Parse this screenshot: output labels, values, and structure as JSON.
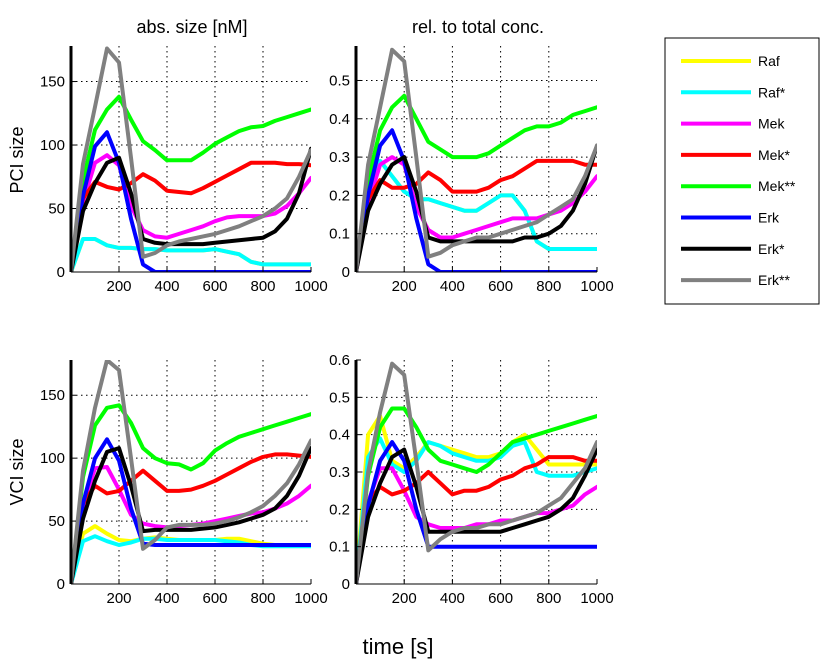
{
  "figure": {
    "column_titles": [
      "abs. size [nM]",
      "rel. to total conc."
    ],
    "row_labels": [
      "PCI size",
      "VCI size"
    ],
    "xlabel": "time [s]"
  },
  "legend": {
    "placement": "right",
    "entries": [
      {
        "name": "Raf",
        "color": "#ffff00"
      },
      {
        "name": "Raf*",
        "color": "#00ffff"
      },
      {
        "name": "Mek",
        "color": "#ff00ff"
      },
      {
        "name": "Mek*",
        "color": "#ff0000"
      },
      {
        "name": "Mek**",
        "color": "#00ff00"
      },
      {
        "name": "Erk",
        "color": "#0000ff"
      },
      {
        "name": "Erk*",
        "color": "#000000"
      },
      {
        "name": "Erk**",
        "color": "#808080"
      }
    ]
  },
  "chart_data": [
    {
      "type": "line",
      "row": 0,
      "col": 0,
      "title": "abs. size [nM]",
      "ylabel": "PCI size",
      "xlim": [
        0,
        1000
      ],
      "ylim": [
        0,
        178
      ],
      "xticks": [
        200,
        400,
        600,
        800,
        1000
      ],
      "yticks": [
        0,
        50,
        100,
        150
      ],
      "grid": true,
      "x": [
        0,
        50,
        100,
        150,
        200,
        250,
        300,
        350,
        400,
        450,
        500,
        550,
        600,
        650,
        700,
        750,
        800,
        850,
        900,
        950,
        1000
      ],
      "series": [
        {
          "name": "Raf",
          "color": "#ffff00",
          "values": [
            0,
            26,
            26,
            21,
            19,
            19,
            18,
            18,
            17,
            17,
            17,
            17,
            18,
            16,
            14,
            8,
            6,
            6,
            6,
            6,
            6
          ]
        },
        {
          "name": "Raf*",
          "color": "#00ffff",
          "values": [
            0,
            26,
            26,
            21,
            19,
            19,
            18,
            18,
            17,
            17,
            17,
            17,
            18,
            16,
            14,
            8,
            6,
            6,
            6,
            6,
            6
          ]
        },
        {
          "name": "Mek",
          "color": "#ff00ff",
          "values": [
            0,
            55,
            86,
            92,
            84,
            52,
            33,
            28,
            27,
            30,
            33,
            36,
            40,
            43,
            44,
            44,
            44,
            46,
            52,
            62,
            74
          ]
        },
        {
          "name": "Mek*",
          "color": "#ff0000",
          "values": [
            0,
            58,
            71,
            67,
            65,
            70,
            77,
            72,
            64,
            63,
            62,
            66,
            71,
            76,
            81,
            86,
            86,
            86,
            85,
            85,
            84
          ]
        },
        {
          "name": "Mek**",
          "color": "#00ff00",
          "values": [
            0,
            72,
            112,
            128,
            138,
            120,
            103,
            96,
            88,
            88,
            88,
            94,
            101,
            106,
            111,
            114,
            115,
            119,
            122,
            125,
            128
          ]
        },
        {
          "name": "Erk",
          "color": "#0000ff",
          "values": [
            0,
            60,
            99,
            110,
            86,
            42,
            6,
            0,
            0,
            0,
            0,
            0,
            0,
            0,
            0,
            0,
            0,
            0,
            0,
            0,
            0
          ]
        },
        {
          "name": "Erk*",
          "color": "#000000",
          "values": [
            0,
            48,
            70,
            86,
            90,
            62,
            26,
            23,
            22,
            22,
            22,
            22,
            23,
            24,
            25,
            26,
            27,
            32,
            42,
            62,
            97
          ]
        },
        {
          "name": "Erk**",
          "color": "#808080",
          "values": [
            0,
            85,
            130,
            176,
            165,
            90,
            12,
            15,
            21,
            24,
            26,
            28,
            30,
            33,
            36,
            40,
            44,
            50,
            58,
            75,
            96
          ]
        }
      ]
    },
    {
      "type": "line",
      "row": 0,
      "col": 1,
      "title": "rel. to total conc.",
      "ylabel": "",
      "xlim": [
        0,
        1000
      ],
      "ylim": [
        0,
        0.59
      ],
      "xticks": [
        200,
        400,
        600,
        800,
        1000
      ],
      "yticks": [
        0,
        0.1,
        0.2,
        0.3,
        0.4,
        0.5
      ],
      "grid": true,
      "x": [
        0,
        50,
        100,
        150,
        200,
        250,
        300,
        350,
        400,
        450,
        500,
        550,
        600,
        650,
        700,
        750,
        800,
        850,
        900,
        950,
        1000
      ],
      "series": [
        {
          "name": "Raf",
          "color": "#ffff00",
          "values": [
            0,
            0.22,
            0.29,
            0.25,
            0.21,
            0.19,
            0.19,
            0.18,
            0.17,
            0.16,
            0.16,
            0.18,
            0.2,
            0.2,
            0.16,
            0.08,
            0.06,
            0.06,
            0.06,
            0.06,
            0.06
          ]
        },
        {
          "name": "Raf*",
          "color": "#00ffff",
          "values": [
            0,
            0.22,
            0.29,
            0.25,
            0.21,
            0.19,
            0.19,
            0.18,
            0.17,
            0.16,
            0.16,
            0.18,
            0.2,
            0.2,
            0.16,
            0.08,
            0.06,
            0.06,
            0.06,
            0.06,
            0.06
          ]
        },
        {
          "name": "Mek",
          "color": "#ff00ff",
          "values": [
            0,
            0.18,
            0.28,
            0.3,
            0.28,
            0.17,
            0.11,
            0.09,
            0.09,
            0.1,
            0.11,
            0.12,
            0.13,
            0.14,
            0.14,
            0.14,
            0.15,
            0.16,
            0.18,
            0.21,
            0.25
          ]
        },
        {
          "name": "Mek*",
          "color": "#ff0000",
          "values": [
            0,
            0.19,
            0.24,
            0.22,
            0.22,
            0.23,
            0.26,
            0.24,
            0.21,
            0.21,
            0.21,
            0.22,
            0.24,
            0.25,
            0.27,
            0.29,
            0.29,
            0.29,
            0.29,
            0.28,
            0.28
          ]
        },
        {
          "name": "Mek**",
          "color": "#00ff00",
          "values": [
            0,
            0.24,
            0.37,
            0.43,
            0.46,
            0.4,
            0.34,
            0.32,
            0.3,
            0.3,
            0.3,
            0.31,
            0.33,
            0.35,
            0.37,
            0.38,
            0.38,
            0.39,
            0.41,
            0.42,
            0.43
          ]
        },
        {
          "name": "Erk",
          "color": "#0000ff",
          "values": [
            0,
            0.2,
            0.33,
            0.37,
            0.29,
            0.14,
            0.02,
            0,
            0,
            0,
            0,
            0,
            0,
            0,
            0,
            0,
            0,
            0,
            0,
            0,
            0
          ]
        },
        {
          "name": "Erk*",
          "color": "#000000",
          "values": [
            0,
            0.16,
            0.23,
            0.28,
            0.3,
            0.21,
            0.09,
            0.08,
            0.08,
            0.08,
            0.08,
            0.08,
            0.08,
            0.08,
            0.09,
            0.09,
            0.1,
            0.12,
            0.16,
            0.23,
            0.33
          ]
        },
        {
          "name": "Erk**",
          "color": "#808080",
          "values": [
            0,
            0.28,
            0.43,
            0.58,
            0.55,
            0.3,
            0.04,
            0.05,
            0.07,
            0.08,
            0.09,
            0.09,
            0.1,
            0.11,
            0.12,
            0.13,
            0.15,
            0.17,
            0.19,
            0.25,
            0.33
          ]
        }
      ]
    },
    {
      "type": "line",
      "row": 1,
      "col": 0,
      "title": "",
      "ylabel": "VCI size",
      "xlim": [
        0,
        1000
      ],
      "ylim": [
        0,
        178
      ],
      "xticks": [
        200,
        400,
        600,
        800,
        1000
      ],
      "yticks": [
        0,
        50,
        100,
        150
      ],
      "grid": true,
      "x": [
        0,
        50,
        100,
        150,
        200,
        250,
        300,
        350,
        400,
        450,
        500,
        550,
        600,
        650,
        700,
        750,
        800,
        850,
        900,
        950,
        1000
      ],
      "series": [
        {
          "name": "Raf",
          "color": "#ffff00",
          "values": [
            0,
            40,
            46,
            40,
            35,
            34,
            36,
            37,
            36,
            35,
            35,
            35,
            35,
            36,
            36,
            34,
            32,
            31,
            31,
            31,
            31
          ]
        },
        {
          "name": "Raf*",
          "color": "#00ffff",
          "values": [
            0,
            34,
            38,
            34,
            31,
            33,
            36,
            36,
            35,
            35,
            35,
            35,
            35,
            34,
            33,
            31,
            30,
            30,
            30,
            30,
            30
          ]
        },
        {
          "name": "Mek",
          "color": "#ff00ff",
          "values": [
            0,
            62,
            92,
            93,
            75,
            55,
            48,
            46,
            45,
            46,
            47,
            48,
            50,
            52,
            54,
            56,
            57,
            60,
            64,
            70,
            78
          ]
        },
        {
          "name": "Mek*",
          "color": "#ff0000",
          "values": [
            0,
            64,
            78,
            72,
            74,
            82,
            90,
            82,
            74,
            74,
            75,
            78,
            82,
            87,
            92,
            97,
            101,
            103,
            103,
            102,
            101
          ]
        },
        {
          "name": "Mek**",
          "color": "#00ff00",
          "values": [
            0,
            85,
            126,
            140,
            142,
            128,
            108,
            100,
            96,
            95,
            91,
            96,
            106,
            112,
            117,
            120,
            123,
            126,
            129,
            132,
            135
          ]
        },
        {
          "name": "Erk",
          "color": "#0000ff",
          "values": [
            0,
            64,
            100,
            115,
            98,
            60,
            32,
            31,
            31,
            31,
            31,
            31,
            31,
            31,
            31,
            31,
            31,
            31,
            31,
            31,
            31
          ]
        },
        {
          "name": "Erk*",
          "color": "#000000",
          "values": [
            0,
            52,
            82,
            105,
            108,
            78,
            42,
            43,
            43,
            43,
            43,
            44,
            45,
            47,
            49,
            52,
            55,
            60,
            70,
            86,
            108
          ]
        },
        {
          "name": "Erk**",
          "color": "#808080",
          "values": [
            0,
            90,
            140,
            178,
            170,
            100,
            28,
            35,
            45,
            47,
            47,
            47,
            48,
            50,
            53,
            57,
            62,
            70,
            80,
            95,
            114
          ]
        }
      ]
    },
    {
      "type": "line",
      "row": 1,
      "col": 1,
      "title": "",
      "ylabel": "",
      "xlim": [
        0,
        1000
      ],
      "ylim": [
        0,
        0.6
      ],
      "xticks": [
        200,
        400,
        600,
        800,
        1000
      ],
      "yticks": [
        0,
        0.1,
        0.2,
        0.3,
        0.4,
        0.5,
        0.6
      ],
      "grid": true,
      "x": [
        0,
        50,
        100,
        150,
        200,
        250,
        300,
        350,
        400,
        450,
        500,
        550,
        600,
        650,
        700,
        750,
        800,
        850,
        900,
        950,
        1000
      ],
      "series": [
        {
          "name": "Raf",
          "color": "#ffff00",
          "values": [
            0,
            0.4,
            0.45,
            0.33,
            0.31,
            0.34,
            0.38,
            0.37,
            0.36,
            0.35,
            0.34,
            0.34,
            0.35,
            0.38,
            0.4,
            0.36,
            0.32,
            0.32,
            0.32,
            0.32,
            0.32
          ]
        },
        {
          "name": "Raf*",
          "color": "#00ffff",
          "values": [
            0,
            0.34,
            0.39,
            0.32,
            0.3,
            0.33,
            0.38,
            0.37,
            0.35,
            0.34,
            0.33,
            0.33,
            0.34,
            0.37,
            0.38,
            0.3,
            0.29,
            0.29,
            0.29,
            0.3,
            0.31
          ]
        },
        {
          "name": "Mek",
          "color": "#ff00ff",
          "values": [
            0,
            0.22,
            0.31,
            0.31,
            0.25,
            0.18,
            0.16,
            0.15,
            0.15,
            0.15,
            0.16,
            0.16,
            0.17,
            0.17,
            0.18,
            0.19,
            0.19,
            0.2,
            0.21,
            0.24,
            0.26
          ]
        },
        {
          "name": "Mek*",
          "color": "#ff0000",
          "values": [
            0,
            0.22,
            0.26,
            0.24,
            0.25,
            0.27,
            0.3,
            0.27,
            0.24,
            0.25,
            0.25,
            0.26,
            0.28,
            0.29,
            0.31,
            0.32,
            0.34,
            0.34,
            0.34,
            0.33,
            0.33
          ]
        },
        {
          "name": "Mek**",
          "color": "#00ff00",
          "values": [
            0,
            0.29,
            0.42,
            0.47,
            0.47,
            0.42,
            0.36,
            0.33,
            0.32,
            0.31,
            0.3,
            0.32,
            0.35,
            0.38,
            0.39,
            0.4,
            0.41,
            0.42,
            0.43,
            0.44,
            0.45
          ]
        },
        {
          "name": "Erk",
          "color": "#0000ff",
          "values": [
            0,
            0.21,
            0.33,
            0.38,
            0.33,
            0.2,
            0.1,
            0.1,
            0.1,
            0.1,
            0.1,
            0.1,
            0.1,
            0.1,
            0.1,
            0.1,
            0.1,
            0.1,
            0.1,
            0.1,
            0.1
          ]
        },
        {
          "name": "Erk*",
          "color": "#000000",
          "values": [
            0,
            0.18,
            0.27,
            0.34,
            0.36,
            0.26,
            0.14,
            0.14,
            0.14,
            0.14,
            0.14,
            0.14,
            0.14,
            0.15,
            0.16,
            0.17,
            0.18,
            0.2,
            0.23,
            0.29,
            0.36
          ]
        },
        {
          "name": "Erk**",
          "color": "#808080",
          "values": [
            0,
            0.3,
            0.46,
            0.59,
            0.56,
            0.33,
            0.09,
            0.12,
            0.14,
            0.15,
            0.15,
            0.16,
            0.16,
            0.17,
            0.18,
            0.19,
            0.21,
            0.23,
            0.27,
            0.31,
            0.38
          ]
        }
      ]
    }
  ]
}
